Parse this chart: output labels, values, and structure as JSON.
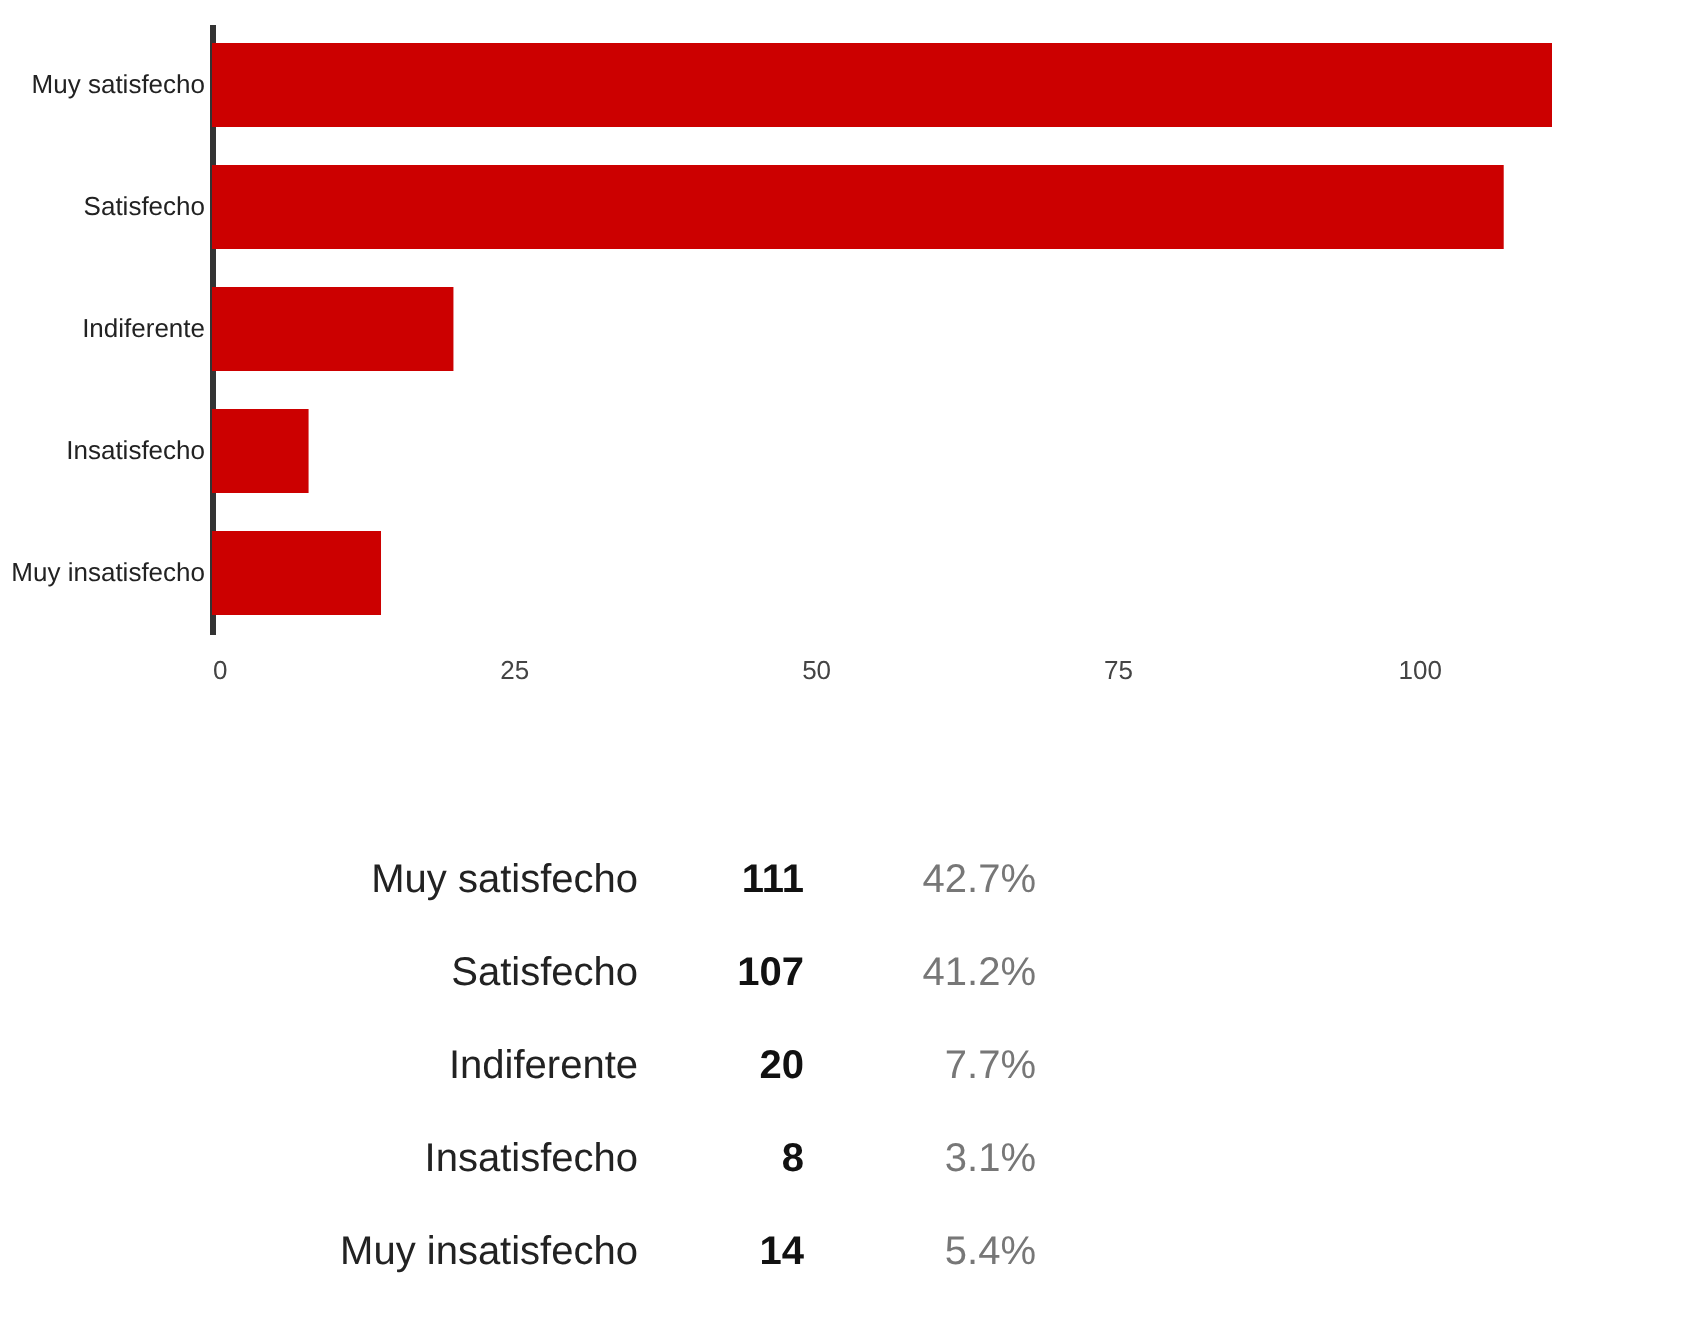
{
  "chart_data": {
    "type": "bar",
    "orientation": "horizontal",
    "categories": [
      "Muy satisfecho",
      "Satisfecho",
      "Indiferente",
      "Insatisfecho",
      "Muy insatisfecho"
    ],
    "values": [
      111,
      107,
      20,
      8,
      14
    ],
    "color": "#cc0000",
    "xlim": [
      0,
      111
    ],
    "xticks": [
      0,
      25,
      50,
      75,
      100
    ],
    "grid": false,
    "annotations": [
      "111",
      "42.7%",
      "107",
      "41.2%",
      "20",
      "7.7%",
      "8",
      "3.1%",
      "14",
      "5.4%"
    ]
  }
}
